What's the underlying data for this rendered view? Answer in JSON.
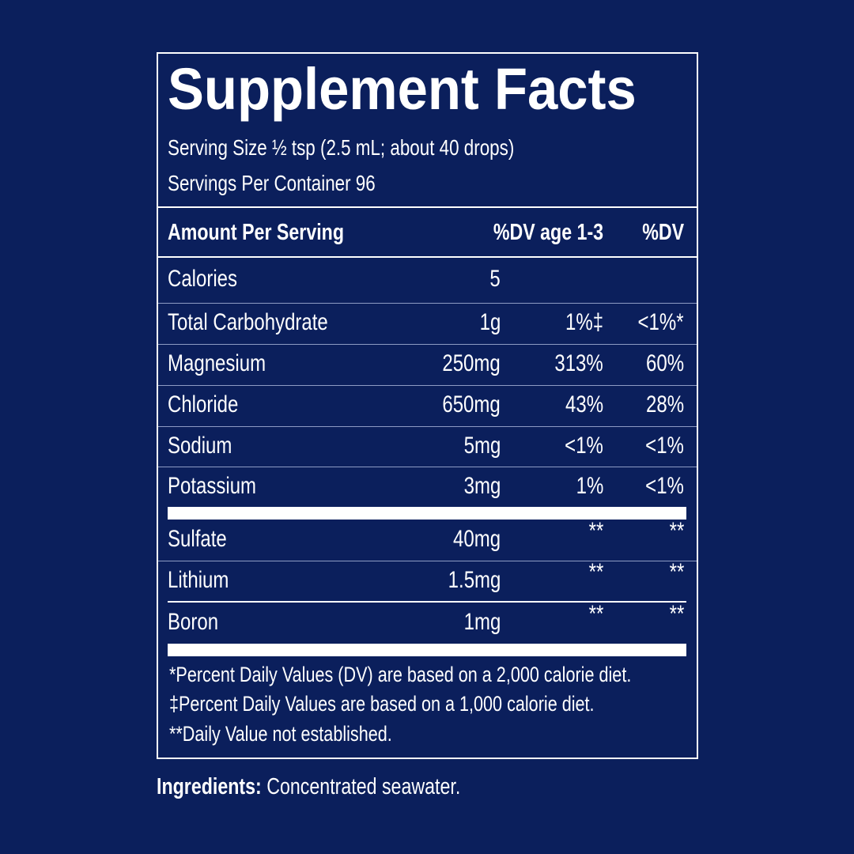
{
  "title": "Supplement Facts",
  "serving_size": "Serving Size ½ tsp (2.5 mL; about 40 drops)",
  "servings_per_container": "Servings Per Container 96",
  "header": {
    "amount": "Amount Per Serving",
    "dv_age": "%DV age 1-3",
    "dv": "%DV"
  },
  "rows": [
    {
      "name": "Calories",
      "amount": "5",
      "dv_age": "",
      "dv": ""
    },
    {
      "name": "Total Carbohydrate",
      "amount": "1g",
      "dv_age": "1%‡",
      "dv": "<1%*"
    },
    {
      "name": "Magnesium",
      "amount": "250mg",
      "dv_age": "313%",
      "dv": "60%"
    },
    {
      "name": "Chloride",
      "amount": "650mg",
      "dv_age": "43%",
      "dv": "28%"
    },
    {
      "name": "Sodium",
      "amount": "5mg",
      "dv_age": "<1%",
      "dv": "<1%"
    },
    {
      "name": "Potassium",
      "amount": "3mg",
      "dv_age": "1%",
      "dv": "<1%"
    },
    {
      "name": "Sulfate",
      "amount": "40mg",
      "dv_age": "**",
      "dv": "**"
    },
    {
      "name": "Lithium",
      "amount": "1.5mg",
      "dv_age": "**",
      "dv": "**"
    },
    {
      "name": "Boron",
      "amount": "1mg",
      "dv_age": "**",
      "dv": "**"
    }
  ],
  "footnotes": [
    "*Percent Daily Values (DV) are based on a 2,000 calorie diet.",
    "‡Percent Daily Values are based on a 1,000 calorie diet.",
    "**Daily Value not established."
  ],
  "ingredients": {
    "label": "Ingredients:",
    "value": "Concentrated seawater."
  },
  "colors": {
    "background": "#0b1f5c",
    "text": "#ffffff"
  }
}
